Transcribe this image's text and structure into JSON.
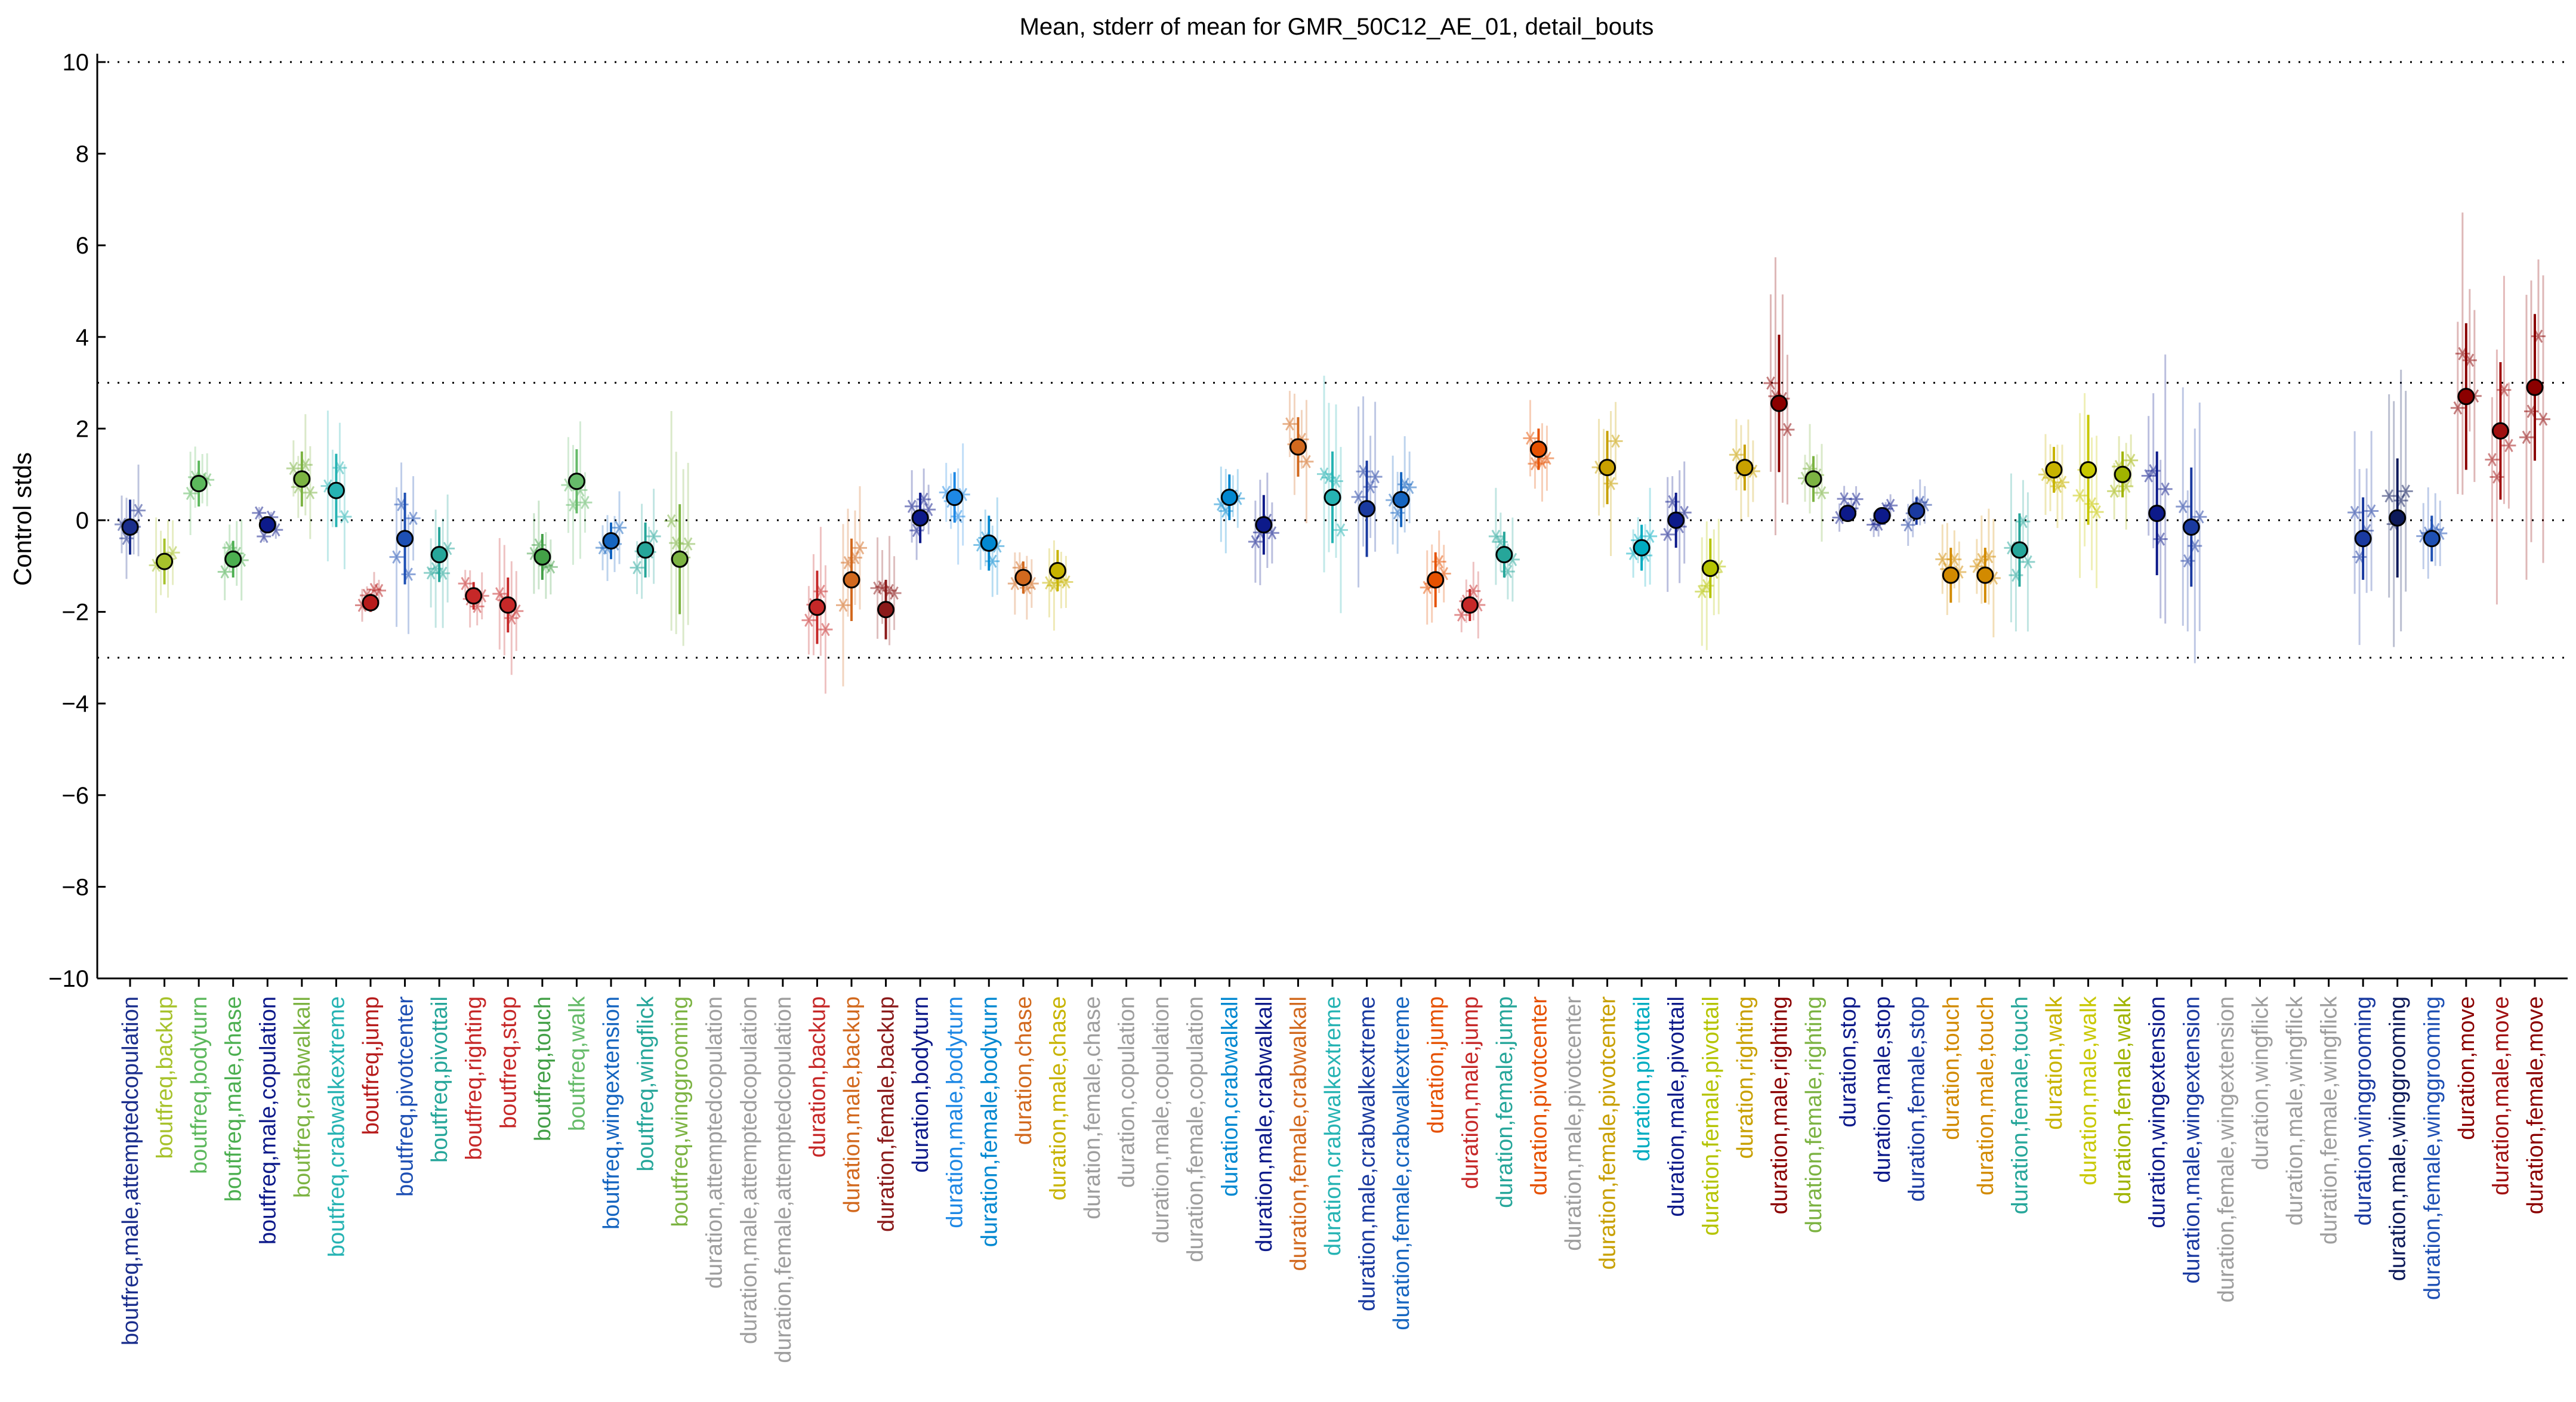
{
  "chart_data": {
    "type": "scatter",
    "title": "Mean, stderr of mean for GMR_50C12_AE_01, detail_bouts",
    "ylabel": "Control stds",
    "ylim": [
      -10,
      10
    ],
    "yticks": [
      -10,
      -8,
      -6,
      -4,
      -2,
      0,
      2,
      4,
      6,
      8,
      10
    ],
    "grid_y": [
      -10,
      -3,
      0,
      3,
      10
    ],
    "categories": [
      {
        "label": "boutfreq,male,attemptedcopulation",
        "color": "#1a2e8c",
        "mean": -0.15,
        "err": 0.6
      },
      {
        "label": "boutfreq,backup",
        "color": "#a7c22b",
        "mean": -0.9,
        "err": 0.5
      },
      {
        "label": "boutfreq,bodyturn",
        "color": "#5cb85c",
        "mean": 0.8,
        "err": 0.5
      },
      {
        "label": "boutfreq,male,chase",
        "color": "#4caf50",
        "mean": -0.85,
        "err": 0.4
      },
      {
        "label": "boutfreq,male,copulation",
        "color": "#0d1a8a",
        "mean": -0.1,
        "err": 0.1
      },
      {
        "label": "boutfreq,crabwalkall",
        "color": "#7cb342",
        "mean": 0.9,
        "err": 0.6
      },
      {
        "label": "boutfreq,crabwalkextreme",
        "color": "#26b3b3",
        "mean": 0.65,
        "err": 0.8
      },
      {
        "label": "boutfreq,jump",
        "color": "#b71c1c",
        "mean": -1.8,
        "err": 0.2
      },
      {
        "label": "boutfreq,pivotcenter",
        "color": "#1e50b4",
        "mean": -0.4,
        "err": 1.0
      },
      {
        "label": "boutfreq,pivottail",
        "color": "#26a69a",
        "mean": -0.75,
        "err": 0.6
      },
      {
        "label": "boutfreq,righting",
        "color": "#c62828",
        "mean": -1.65,
        "err": 0.3
      },
      {
        "label": "boutfreq,stop",
        "color": "#c62828",
        "mean": -1.85,
        "err": 0.6
      },
      {
        "label": "boutfreq,touch",
        "color": "#43a047",
        "mean": -0.8,
        "err": 0.5
      },
      {
        "label": "boutfreq,walk",
        "color": "#66bb6a",
        "mean": 0.85,
        "err": 0.7
      },
      {
        "label": "boutfreq,wingextension",
        "color": "#1565c0",
        "mean": -0.45,
        "err": 0.4
      },
      {
        "label": "boutfreq,wingflick",
        "color": "#26a69a",
        "mean": -0.65,
        "err": 0.6
      },
      {
        "label": "boutfreq,winggrooming",
        "color": "#7cb342",
        "mean": -0.85,
        "err": 1.2
      },
      {
        "label": "duration,attemptedcopulation",
        "color": "#9e9e9e",
        "mean": null,
        "err": null
      },
      {
        "label": "duration,male,attemptedcopulation",
        "color": "#9e9e9e",
        "mean": null,
        "err": null
      },
      {
        "label": "duration,female,attemptedcopulation",
        "color": "#9e9e9e",
        "mean": null,
        "err": null
      },
      {
        "label": "duration,backup",
        "color": "#c62828",
        "mean": -1.9,
        "err": 0.8
      },
      {
        "label": "duration,male,backup",
        "color": "#d2691e",
        "mean": -1.3,
        "err": 0.9
      },
      {
        "label": "duration,female,backup",
        "color": "#8b1a1a",
        "mean": -1.95,
        "err": 0.65
      },
      {
        "label": "duration,bodyturn",
        "color": "#0d1a8a",
        "mean": 0.05,
        "err": 0.55
      },
      {
        "label": "duration,male,bodyturn",
        "color": "#1e88e5",
        "mean": 0.5,
        "err": 0.55
      },
      {
        "label": "duration,female,bodyturn",
        "color": "#0288d1",
        "mean": -0.5,
        "err": 0.6
      },
      {
        "label": "duration,chase",
        "color": "#d2691e",
        "mean": -1.25,
        "err": 0.35
      },
      {
        "label": "duration,male,chase",
        "color": "#c8b400",
        "mean": -1.1,
        "err": 0.45
      },
      {
        "label": "duration,female,chase",
        "color": "#9e9e9e",
        "mean": null,
        "err": null
      },
      {
        "label": "duration,copulation",
        "color": "#9e9e9e",
        "mean": null,
        "err": null
      },
      {
        "label": "duration,male,copulation",
        "color": "#9e9e9e",
        "mean": null,
        "err": null
      },
      {
        "label": "duration,female,copulation",
        "color": "#9e9e9e",
        "mean": null,
        "err": null
      },
      {
        "label": "duration,crabwalkall",
        "color": "#0288d1",
        "mean": 0.5,
        "err": 0.5
      },
      {
        "label": "duration,male,crabwalkall",
        "color": "#0d1a8a",
        "mean": -0.1,
        "err": 0.65
      },
      {
        "label": "duration,female,crabwalkall",
        "color": "#d2691e",
        "mean": 1.6,
        "err": 0.65
      },
      {
        "label": "duration,crabwalkextreme",
        "color": "#26b3b3",
        "mean": 0.5,
        "err": 1.0
      },
      {
        "label": "duration,male,crabwalkextreme",
        "color": "#1a3aa0",
        "mean": 0.25,
        "err": 1.05
      },
      {
        "label": "duration,female,crabwalkextreme",
        "color": "#1565c0",
        "mean": 0.45,
        "err": 0.6
      },
      {
        "label": "duration,jump",
        "color": "#e65100",
        "mean": -1.3,
        "err": 0.6
      },
      {
        "label": "duration,male,jump",
        "color": "#c62828",
        "mean": -1.85,
        "err": 0.35
      },
      {
        "label": "duration,female,jump",
        "color": "#26a69a",
        "mean": -0.75,
        "err": 0.5
      },
      {
        "label": "duration,pivotcenter",
        "color": "#e65100",
        "mean": 1.55,
        "err": 0.45
      },
      {
        "label": "duration,male,pivotcenter",
        "color": "#9e9e9e",
        "mean": null,
        "err": null
      },
      {
        "label": "duration,female,pivotcenter",
        "color": "#c8a000",
        "mean": 1.15,
        "err": 0.8
      },
      {
        "label": "duration,pivottail",
        "color": "#00acc1",
        "mean": -0.6,
        "err": 0.5
      },
      {
        "label": "duration,male,pivottail",
        "color": "#0d1a8a",
        "mean": 0.0,
        "err": 0.6
      },
      {
        "label": "duration,female,pivottail",
        "color": "#b5c400",
        "mean": -1.05,
        "err": 0.65
      },
      {
        "label": "duration,righting",
        "color": "#c8a000",
        "mean": 1.15,
        "err": 0.5
      },
      {
        "label": "duration,male,righting",
        "color": "#8b0000",
        "mean": 2.55,
        "err": 1.5
      },
      {
        "label": "duration,female,righting",
        "color": "#7cb342",
        "mean": 0.9,
        "err": 0.5
      },
      {
        "label": "duration,stop",
        "color": "#0d1a8a",
        "mean": 0.15,
        "err": 0.15
      },
      {
        "label": "duration,male,stop",
        "color": "#0d1a8a",
        "mean": 0.1,
        "err": 0.15
      },
      {
        "label": "duration,female,stop",
        "color": "#1a3aa0",
        "mean": 0.2,
        "err": 0.3
      },
      {
        "label": "duration,touch",
        "color": "#d28a00",
        "mean": -1.2,
        "err": 0.6
      },
      {
        "label": "duration,male,touch",
        "color": "#d28a00",
        "mean": -1.2,
        "err": 0.6
      },
      {
        "label": "duration,female,touch",
        "color": "#26a69a",
        "mean": -0.65,
        "err": 0.8
      },
      {
        "label": "duration,walk",
        "color": "#c8b400",
        "mean": 1.1,
        "err": 0.5
      },
      {
        "label": "duration,male,walk",
        "color": "#c8c800",
        "mean": 1.1,
        "err": 1.2
      },
      {
        "label": "duration,female,walk",
        "color": "#a0b400",
        "mean": 1.0,
        "err": 0.5
      },
      {
        "label": "duration,wingextension",
        "color": "#0d1a8a",
        "mean": 0.15,
        "err": 1.35
      },
      {
        "label": "duration,male,wingextension",
        "color": "#1a3aa0",
        "mean": -0.15,
        "err": 1.3
      },
      {
        "label": "duration,female,wingextension",
        "color": "#9e9e9e",
        "mean": null,
        "err": null
      },
      {
        "label": "duration,wingflick",
        "color": "#9e9e9e",
        "mean": null,
        "err": null
      },
      {
        "label": "duration,male,wingflick",
        "color": "#9e9e9e",
        "mean": null,
        "err": null
      },
      {
        "label": "duration,female,wingflick",
        "color": "#9e9e9e",
        "mean": null,
        "err": null
      },
      {
        "label": "duration,winggrooming",
        "color": "#1a3aa0",
        "mean": -0.4,
        "err": 0.9
      },
      {
        "label": "duration,male,winggrooming",
        "color": "#0d1a5a",
        "mean": 0.05,
        "err": 1.3
      },
      {
        "label": "duration,female,winggrooming",
        "color": "#1e50b4",
        "mean": -0.4,
        "err": 0.5
      },
      {
        "label": "duration,move",
        "color": "#8b0000",
        "mean": 2.7,
        "err": 1.6
      },
      {
        "label": "duration,male,move",
        "color": "#a01010",
        "mean": 1.95,
        "err": 1.5
      },
      {
        "label": "duration,female,move",
        "color": "#8b0000",
        "mean": 2.9,
        "err": 1.6
      }
    ]
  }
}
